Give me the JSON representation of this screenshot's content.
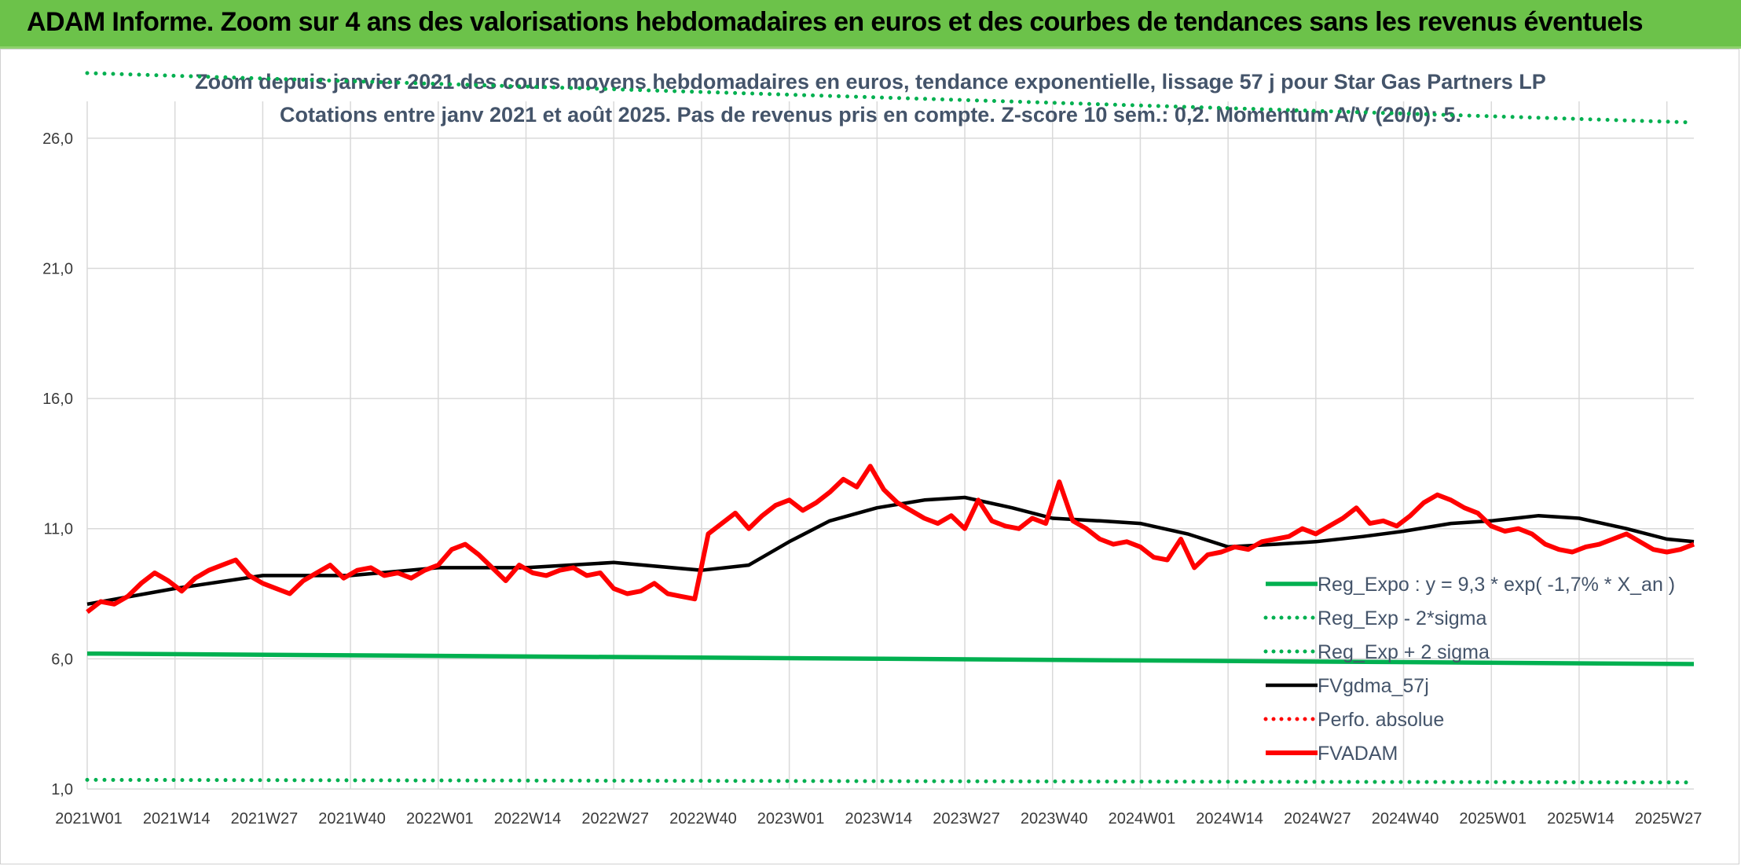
{
  "header": {
    "title": "ADAM Informe. Zoom sur 4 ans des valorisations hebdomadaires en euros et des courbes de tendances sans les revenus éventuels"
  },
  "colors": {
    "banner": "#6cc24a",
    "trend_green": "#00b050",
    "fv_black": "#000000",
    "fvadam_red": "#ff0000",
    "grid": "#d9d9d9"
  },
  "chart_data": {
    "type": "line",
    "title": "Zoom depuis janvier 2021 des cours moyens hebdomadaires en euros, tendance exponentielle, lissage 57 j pour Star Gas Partners LP",
    "subtitle": "Cotations entre janv 2021 et août 2025. Pas de revenus pris en compte. Z-score 10 sem.: 0,2. Momentum A/V (20/0): 5.",
    "xlabel": "",
    "ylabel": "",
    "ylim": [
      1,
      28.5
    ],
    "y_ticks": [
      "1,0",
      "6,0",
      "11,0",
      "16,0",
      "21,0",
      "26,0"
    ],
    "y_tick_values": [
      1,
      6,
      11,
      16,
      21,
      26
    ],
    "x_ticks": [
      "2021W01",
      "2021W14",
      "2021W27",
      "2021W40",
      "2022W01",
      "2022W14",
      "2022W27",
      "2022W40",
      "2023W01",
      "2023W14",
      "2023W27",
      "2023W40",
      "2024W01",
      "2024W14",
      "2024W27",
      "2024W40",
      "2025W01",
      "2025W14",
      "2025W27"
    ],
    "x_week_index": [
      0,
      13,
      26,
      39,
      52,
      65,
      78,
      91,
      104,
      117,
      130,
      143,
      156,
      169,
      182,
      195,
      208,
      221,
      234
    ],
    "n_weeks": 239,
    "grid": true,
    "legend_position": "bottom-right",
    "series": [
      {
        "name": "Reg_Expo : y = 9,3 * exp( -1,7% *  X_an )",
        "style": "solid-thick",
        "color": "#00b050",
        "x": [
          0,
          238
        ],
        "values": [
          6.2,
          5.8
        ]
      },
      {
        "name": "Reg_Exp - 2*sigma",
        "style": "dotted",
        "color": "#00b050",
        "x": [
          0,
          238
        ],
        "values": [
          1.35,
          1.25
        ]
      },
      {
        "name": "Reg_Exp + 2 sigma",
        "style": "dotted",
        "color": "#00b050",
        "x": [
          0,
          238
        ],
        "values": [
          28.5,
          26.6
        ]
      },
      {
        "name": "FVgdma_57j",
        "style": "solid",
        "color": "#000000",
        "x": [
          0,
          13,
          26,
          39,
          52,
          65,
          78,
          91,
          98,
          104,
          110,
          117,
          124,
          130,
          137,
          143,
          150,
          156,
          163,
          169,
          176,
          182,
          189,
          195,
          202,
          208,
          215,
          221,
          228,
          234,
          238
        ],
        "values": [
          8.1,
          8.7,
          9.2,
          9.2,
          9.5,
          9.5,
          9.7,
          9.4,
          9.6,
          10.5,
          11.3,
          11.8,
          12.1,
          12.2,
          11.8,
          11.4,
          11.3,
          11.2,
          10.8,
          10.3,
          10.4,
          10.5,
          10.7,
          10.9,
          11.2,
          11.3,
          11.5,
          11.4,
          11.0,
          10.6,
          10.5
        ]
      },
      {
        "name": "Perfo. absolue",
        "style": "dotted",
        "color": "#ff0000",
        "x": [],
        "values": []
      },
      {
        "name": "FVADAM",
        "style": "solid-thick",
        "color": "#ff0000",
        "x": [
          0,
          2,
          4,
          6,
          8,
          10,
          12,
          14,
          16,
          18,
          20,
          22,
          24,
          26,
          28,
          30,
          32,
          34,
          36,
          38,
          40,
          42,
          44,
          46,
          48,
          50,
          52,
          54,
          56,
          58,
          60,
          62,
          64,
          66,
          68,
          70,
          72,
          74,
          76,
          78,
          80,
          82,
          84,
          86,
          88,
          90,
          92,
          94,
          96,
          98,
          100,
          102,
          104,
          106,
          108,
          110,
          112,
          114,
          116,
          118,
          120,
          122,
          124,
          126,
          128,
          130,
          132,
          134,
          136,
          138,
          140,
          142,
          144,
          146,
          148,
          150,
          152,
          154,
          156,
          158,
          160,
          162,
          164,
          166,
          168,
          170,
          172,
          174,
          176,
          178,
          180,
          182,
          184,
          186,
          188,
          190,
          192,
          194,
          196,
          198,
          200,
          202,
          204,
          206,
          208,
          210,
          212,
          214,
          216,
          218,
          220,
          222,
          224,
          226,
          228,
          230,
          232,
          234,
          236,
          238
        ],
        "values": [
          7.8,
          8.2,
          8.1,
          8.4,
          8.9,
          9.3,
          9.0,
          8.6,
          9.1,
          9.4,
          9.6,
          9.8,
          9.2,
          8.9,
          8.7,
          8.5,
          9.0,
          9.3,
          9.6,
          9.1,
          9.4,
          9.5,
          9.2,
          9.3,
          9.1,
          9.4,
          9.6,
          10.2,
          10.4,
          10.0,
          9.5,
          9.0,
          9.6,
          9.3,
          9.2,
          9.4,
          9.5,
          9.2,
          9.3,
          8.7,
          8.5,
          8.6,
          8.9,
          8.5,
          8.4,
          8.3,
          10.8,
          11.2,
          11.6,
          11.0,
          11.5,
          11.9,
          12.1,
          11.7,
          12.0,
          12.4,
          12.9,
          12.6,
          13.4,
          12.5,
          12.0,
          11.7,
          11.4,
          11.2,
          11.5,
          11.0,
          12.1,
          11.3,
          11.1,
          11.0,
          11.4,
          11.2,
          12.8,
          11.3,
          11.0,
          10.6,
          10.4,
          10.5,
          10.3,
          9.9,
          9.8,
          10.6,
          9.5,
          10.0,
          10.1,
          10.3,
          10.2,
          10.5,
          10.6,
          10.7,
          11.0,
          10.8,
          11.1,
          11.4,
          11.8,
          11.2,
          11.3,
          11.1,
          11.5,
          12.0,
          12.3,
          12.1,
          11.8,
          11.6,
          11.1,
          10.9,
          11.0,
          10.8,
          10.4,
          10.2,
          10.1,
          10.3,
          10.4,
          10.6,
          10.8,
          10.5,
          10.2,
          10.1,
          10.2,
          10.4
        ]
      }
    ]
  }
}
